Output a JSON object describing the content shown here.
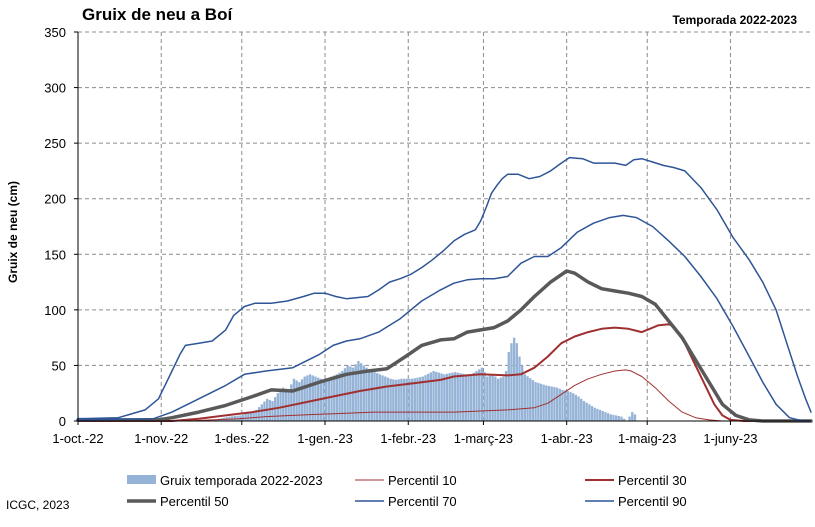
{
  "chart_data": {
    "type": "line",
    "title": "Gruix de neu a Boí",
    "subtitle": "Temporada 2022-2023",
    "ylabel": "Gruix de neu (cm)",
    "xlabel": "",
    "ylim": [
      0,
      350
    ],
    "yticks": [
      0,
      50,
      100,
      150,
      200,
      250,
      300,
      350
    ],
    "x_range_days": [
      0,
      273
    ],
    "xticks": [
      {
        "day": 0,
        "label": "1-oct.-22"
      },
      {
        "day": 31,
        "label": "1-nov.-22"
      },
      {
        "day": 61,
        "label": "1-des.-22"
      },
      {
        "day": 92,
        "label": "1-gen.-23"
      },
      {
        "day": 123,
        "label": "1-febr.-23"
      },
      {
        "day": 151,
        "label": "1-març-23"
      },
      {
        "day": 182,
        "label": "1-abr.-23"
      },
      {
        "day": 212,
        "label": "1-maig-23"
      },
      {
        "day": 243,
        "label": "1-juny-23"
      }
    ],
    "grid": true,
    "legend_position": "bottom",
    "bar_series": {
      "name": "Gruix temporada 2022-2023",
      "color": "#95b3d7",
      "points": [
        [
          0,
          3
        ],
        [
          10,
          2
        ],
        [
          20,
          1
        ],
        [
          30,
          1
        ],
        [
          40,
          0
        ],
        [
          48,
          0
        ],
        [
          52,
          2
        ],
        [
          56,
          4
        ],
        [
          60,
          5
        ],
        [
          64,
          8
        ],
        [
          66,
          10
        ],
        [
          68,
          15
        ],
        [
          70,
          20
        ],
        [
          72,
          18
        ],
        [
          74,
          25
        ],
        [
          76,
          30
        ],
        [
          78,
          28
        ],
        [
          80,
          38
        ],
        [
          82,
          35
        ],
        [
          84,
          40
        ],
        [
          86,
          42
        ],
        [
          88,
          40
        ],
        [
          90,
          38
        ],
        [
          92,
          36
        ],
        [
          94,
          40
        ],
        [
          96,
          42
        ],
        [
          98,
          45
        ],
        [
          100,
          50
        ],
        [
          102,
          48
        ],
        [
          104,
          54
        ],
        [
          106,
          50
        ],
        [
          108,
          46
        ],
        [
          110,
          44
        ],
        [
          112,
          42
        ],
        [
          114,
          40
        ],
        [
          116,
          38
        ],
        [
          118,
          37
        ],
        [
          120,
          38
        ],
        [
          124,
          38
        ],
        [
          128,
          40
        ],
        [
          132,
          45
        ],
        [
          136,
          42
        ],
        [
          140,
          44
        ],
        [
          144,
          42
        ],
        [
          146,
          42
        ],
        [
          148,
          45
        ],
        [
          150,
          48
        ],
        [
          152,
          40
        ],
        [
          154,
          42
        ],
        [
          156,
          38
        ],
        [
          158,
          40
        ],
        [
          159,
          45
        ],
        [
          160,
          62
        ],
        [
          161,
          70
        ],
        [
          162,
          75
        ],
        [
          163,
          70
        ],
        [
          164,
          58
        ],
        [
          166,
          42
        ],
        [
          170,
          35
        ],
        [
          174,
          32
        ],
        [
          178,
          30
        ],
        [
          180,
          28
        ],
        [
          182,
          27
        ],
        [
          184,
          25
        ],
        [
          186,
          22
        ],
        [
          188,
          18
        ],
        [
          190,
          15
        ],
        [
          192,
          12
        ],
        [
          194,
          10
        ],
        [
          196,
          8
        ],
        [
          198,
          6
        ],
        [
          200,
          5
        ],
        [
          202,
          4
        ],
        [
          204,
          0
        ],
        [
          206,
          8
        ],
        [
          207,
          6
        ],
        [
          208,
          0
        ],
        [
          273,
          0
        ]
      ]
    },
    "series": [
      {
        "name": "Percentil 10",
        "color": "#a03030",
        "width": 1,
        "points": [
          [
            0,
            0
          ],
          [
            40,
            0
          ],
          [
            60,
            2
          ],
          [
            70,
            4
          ],
          [
            80,
            5
          ],
          [
            90,
            6
          ],
          [
            100,
            7
          ],
          [
            110,
            8
          ],
          [
            120,
            8
          ],
          [
            130,
            8
          ],
          [
            140,
            8
          ],
          [
            150,
            9
          ],
          [
            160,
            10
          ],
          [
            170,
            12
          ],
          [
            175,
            16
          ],
          [
            180,
            24
          ],
          [
            185,
            32
          ],
          [
            190,
            38
          ],
          [
            195,
            42
          ],
          [
            200,
            45
          ],
          [
            204,
            46
          ],
          [
            206,
            45
          ],
          [
            210,
            40
          ],
          [
            215,
            30
          ],
          [
            220,
            18
          ],
          [
            225,
            8
          ],
          [
            230,
            3
          ],
          [
            235,
            1
          ],
          [
            240,
            0
          ],
          [
            273,
            0
          ]
        ]
      },
      {
        "name": "Percentil 30",
        "color": "#a03030",
        "width": 2,
        "points": [
          [
            0,
            0
          ],
          [
            35,
            0
          ],
          [
            45,
            2
          ],
          [
            55,
            5
          ],
          [
            65,
            8
          ],
          [
            75,
            12
          ],
          [
            85,
            17
          ],
          [
            95,
            22
          ],
          [
            105,
            27
          ],
          [
            115,
            31
          ],
          [
            125,
            34
          ],
          [
            135,
            37
          ],
          [
            140,
            40
          ],
          [
            145,
            41
          ],
          [
            150,
            42
          ],
          [
            160,
            41
          ],
          [
            165,
            42
          ],
          [
            170,
            48
          ],
          [
            175,
            58
          ],
          [
            180,
            70
          ],
          [
            185,
            76
          ],
          [
            190,
            80
          ],
          [
            195,
            83
          ],
          [
            200,
            84
          ],
          [
            205,
            83
          ],
          [
            210,
            80
          ],
          [
            213,
            83
          ],
          [
            216,
            86
          ],
          [
            220,
            87
          ],
          [
            222,
            85
          ],
          [
            226,
            70
          ],
          [
            230,
            50
          ],
          [
            234,
            30
          ],
          [
            237,
            15
          ],
          [
            240,
            5
          ],
          [
            243,
            1
          ],
          [
            248,
            0
          ],
          [
            273,
            0
          ]
        ]
      },
      {
        "name": "Percentil 50",
        "color": "#595959",
        "width": 3.5,
        "points": [
          [
            0,
            1
          ],
          [
            30,
            1
          ],
          [
            35,
            3
          ],
          [
            45,
            8
          ],
          [
            55,
            14
          ],
          [
            65,
            22
          ],
          [
            72,
            28
          ],
          [
            80,
            27
          ],
          [
            90,
            35
          ],
          [
            100,
            42
          ],
          [
            108,
            45
          ],
          [
            115,
            47
          ],
          [
            122,
            58
          ],
          [
            128,
            68
          ],
          [
            135,
            73
          ],
          [
            140,
            74
          ],
          [
            145,
            80
          ],
          [
            150,
            82
          ],
          [
            155,
            84
          ],
          [
            160,
            90
          ],
          [
            165,
            100
          ],
          [
            170,
            112
          ],
          [
            176,
            125
          ],
          [
            182,
            135
          ],
          [
            185,
            133
          ],
          [
            190,
            125
          ],
          [
            195,
            119
          ],
          [
            200,
            117
          ],
          [
            205,
            115
          ],
          [
            210,
            112
          ],
          [
            215,
            105
          ],
          [
            220,
            90
          ],
          [
            225,
            75
          ],
          [
            230,
            55
          ],
          [
            235,
            35
          ],
          [
            240,
            15
          ],
          [
            245,
            5
          ],
          [
            250,
            1
          ],
          [
            255,
            0
          ],
          [
            273,
            0
          ]
        ]
      },
      {
        "name": "Percentil 70",
        "color": "#2f5597",
        "width": 1.5,
        "points": [
          [
            0,
            1
          ],
          [
            28,
            2
          ],
          [
            35,
            8
          ],
          [
            45,
            20
          ],
          [
            55,
            32
          ],
          [
            62,
            42
          ],
          [
            70,
            45
          ],
          [
            80,
            48
          ],
          [
            90,
            60
          ],
          [
            95,
            68
          ],
          [
            100,
            72
          ],
          [
            105,
            74
          ],
          [
            112,
            80
          ],
          [
            120,
            92
          ],
          [
            128,
            108
          ],
          [
            135,
            118
          ],
          [
            140,
            124
          ],
          [
            145,
            127
          ],
          [
            150,
            128
          ],
          [
            155,
            128
          ],
          [
            160,
            130
          ],
          [
            165,
            142
          ],
          [
            170,
            148
          ],
          [
            175,
            148
          ],
          [
            180,
            156
          ],
          [
            186,
            170
          ],
          [
            192,
            178
          ],
          [
            198,
            183
          ],
          [
            203,
            185
          ],
          [
            208,
            183
          ],
          [
            214,
            175
          ],
          [
            220,
            162
          ],
          [
            226,
            148
          ],
          [
            232,
            130
          ],
          [
            238,
            110
          ],
          [
            244,
            85
          ],
          [
            250,
            58
          ],
          [
            255,
            35
          ],
          [
            260,
            15
          ],
          [
            265,
            3
          ],
          [
            270,
            0
          ],
          [
            273,
            0
          ]
        ]
      },
      {
        "name": "Percentil 90",
        "color": "#2f5597",
        "width": 1.5,
        "points": [
          [
            0,
            2
          ],
          [
            15,
            3
          ],
          [
            25,
            10
          ],
          [
            30,
            20
          ],
          [
            35,
            45
          ],
          [
            38,
            60
          ],
          [
            40,
            68
          ],
          [
            45,
            70
          ],
          [
            50,
            72
          ],
          [
            55,
            82
          ],
          [
            58,
            95
          ],
          [
            62,
            103
          ],
          [
            66,
            106
          ],
          [
            72,
            106
          ],
          [
            78,
            108
          ],
          [
            84,
            112
          ],
          [
            88,
            115
          ],
          [
            92,
            115
          ],
          [
            96,
            112
          ],
          [
            100,
            110
          ],
          [
            104,
            111
          ],
          [
            108,
            112
          ],
          [
            112,
            118
          ],
          [
            116,
            125
          ],
          [
            120,
            128
          ],
          [
            124,
            132
          ],
          [
            128,
            138
          ],
          [
            132,
            145
          ],
          [
            136,
            153
          ],
          [
            140,
            162
          ],
          [
            144,
            168
          ],
          [
            148,
            172
          ],
          [
            150,
            180
          ],
          [
            152,
            192
          ],
          [
            154,
            205
          ],
          [
            156,
            212
          ],
          [
            158,
            218
          ],
          [
            160,
            222
          ],
          [
            164,
            222
          ],
          [
            168,
            218
          ],
          [
            172,
            220
          ],
          [
            176,
            225
          ],
          [
            180,
            232
          ],
          [
            183,
            237
          ],
          [
            188,
            236
          ],
          [
            192,
            232
          ],
          [
            196,
            232
          ],
          [
            200,
            232
          ],
          [
            204,
            230
          ],
          [
            207,
            235
          ],
          [
            210,
            236
          ],
          [
            214,
            233
          ],
          [
            218,
            230
          ],
          [
            222,
            228
          ],
          [
            226,
            225
          ],
          [
            232,
            210
          ],
          [
            238,
            190
          ],
          [
            244,
            165
          ],
          [
            250,
            145
          ],
          [
            255,
            125
          ],
          [
            260,
            100
          ],
          [
            264,
            70
          ],
          [
            268,
            40
          ],
          [
            271,
            20
          ],
          [
            273,
            8
          ]
        ]
      }
    ],
    "legend": [
      {
        "kind": "bar",
        "label": "Gruix temporada 2022-2023",
        "color": "#95b3d7"
      },
      {
        "kind": "line",
        "label": "Percentil 10",
        "color": "#a03030",
        "width": 1
      },
      {
        "kind": "line",
        "label": "Percentil 30",
        "color": "#a03030",
        "width": 2
      },
      {
        "kind": "line",
        "label": "Percentil 50",
        "color": "#595959",
        "width": 3.5
      },
      {
        "kind": "line",
        "label": "Percentil 70",
        "color": "#2f5597",
        "width": 1.5
      },
      {
        "kind": "line",
        "label": "Percentil 90",
        "color": "#2f5597",
        "width": 1.5
      }
    ]
  },
  "footer": {
    "credit": "ICGC, 2023"
  }
}
